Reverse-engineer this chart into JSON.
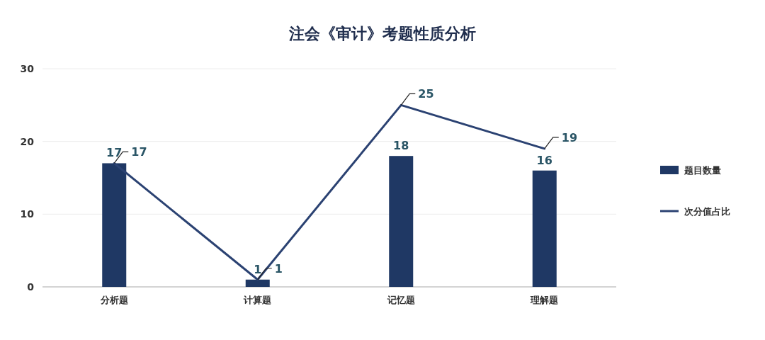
{
  "chart_data": {
    "type": "bar",
    "title": "注会《审计》考题性质分析",
    "categories": [
      "分析题",
      "计算题",
      "记忆题",
      "理解题"
    ],
    "series": [
      {
        "name": "题目数量",
        "color": "#1f3864",
        "values": [
          17,
          1,
          18,
          16
        ]
      },
      {
        "name": "次分值占比",
        "type": "line",
        "color": "#2b4272",
        "values": [
          17,
          1,
          25,
          19
        ]
      }
    ],
    "ylim": [
      0,
      30
    ],
    "yticks": [
      0,
      10,
      20,
      30
    ],
    "grid": "y",
    "legend": "right",
    "data_labels": true
  }
}
